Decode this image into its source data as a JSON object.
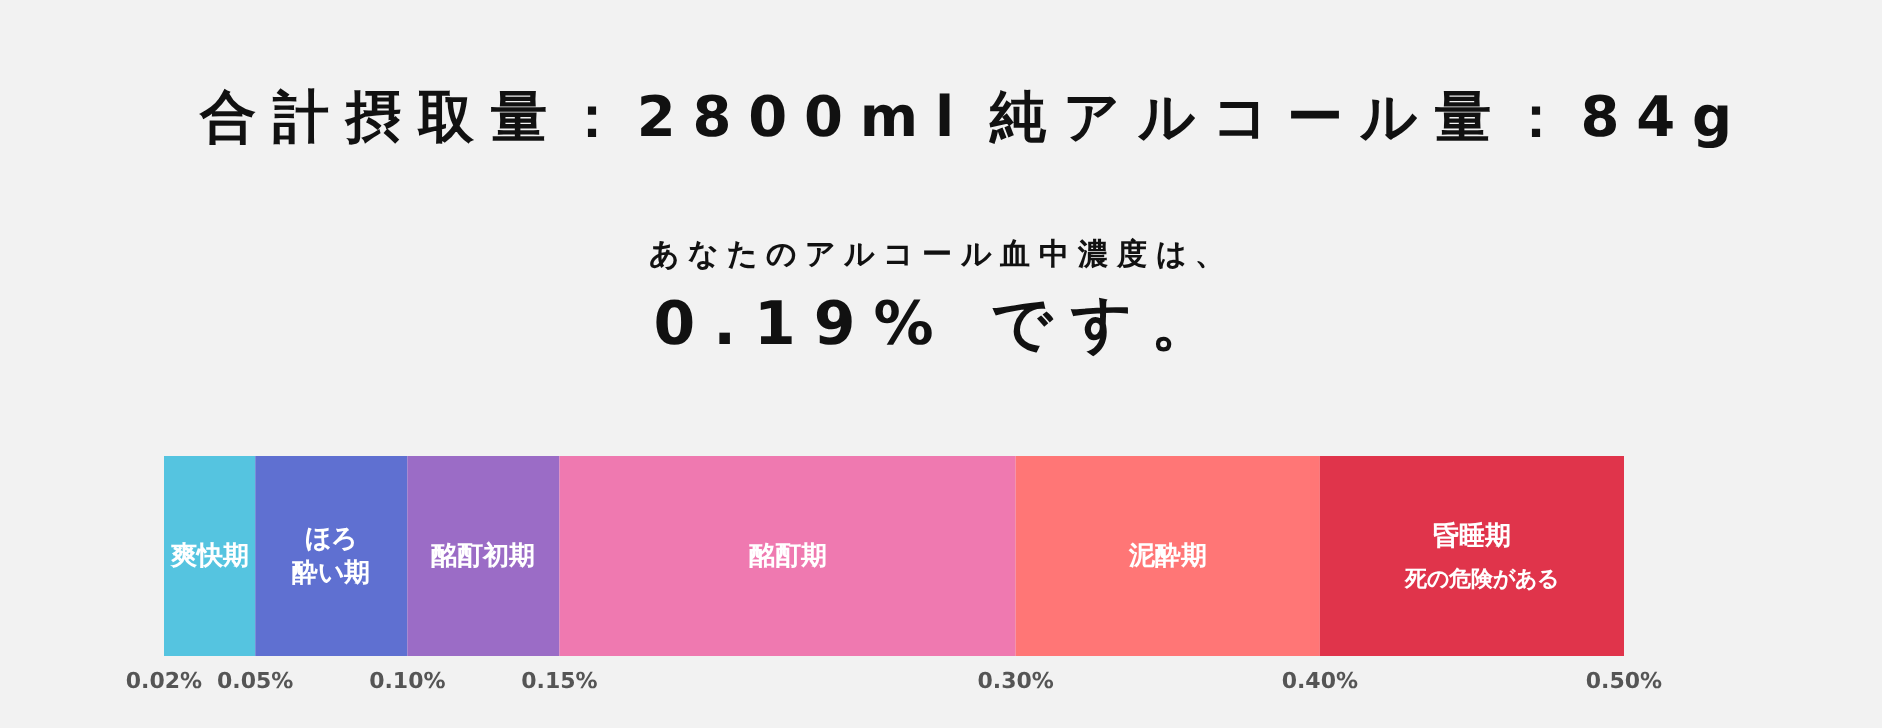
{
  "chart_data": {
    "type": "bar",
    "orientation": "horizontal",
    "stacked": true,
    "categories": [
      null
    ],
    "annotations": [
      "合計摂取量：2800ml",
      "純アルコール量：84g",
      "あなたのアルコール血中濃度は、",
      "0.19% です。",
      "死の危険がある"
    ],
    "series": [
      {
        "name": "爽快期",
        "color": "#55c4e0",
        "values": [
          0.05
        ]
      },
      {
        "name": "ほろ酔い期",
        "color": "#5f70d1",
        "values": [
          0.05
        ]
      },
      {
        "name": "酩酊初期",
        "color": "#9b6cc6",
        "values": [
          0.05
        ]
      },
      {
        "name": "酩酊期",
        "color": "#ef79b0",
        "values": [
          0.15
        ]
      },
      {
        "name": "泥酔期",
        "color": "#ff7676",
        "values": [
          0.1
        ]
      },
      {
        "name": "昏睡期",
        "color": "#e0344b",
        "values": [
          0.1
        ]
      }
    ],
    "xlim": [
      0.02,
      0.5
    ],
    "xticks": [
      {
        "value": 0.02,
        "label": "0.02%"
      },
      {
        "value": 0.05,
        "label": "0.05%"
      },
      {
        "value": 0.1,
        "label": "0.10%"
      },
      {
        "value": 0.15,
        "label": "0.15%"
      },
      {
        "value": 0.3,
        "label": "0.30%"
      },
      {
        "value": 0.4,
        "label": "0.40%"
      },
      {
        "value": 0.5,
        "label": "0.50%"
      }
    ]
  }
}
